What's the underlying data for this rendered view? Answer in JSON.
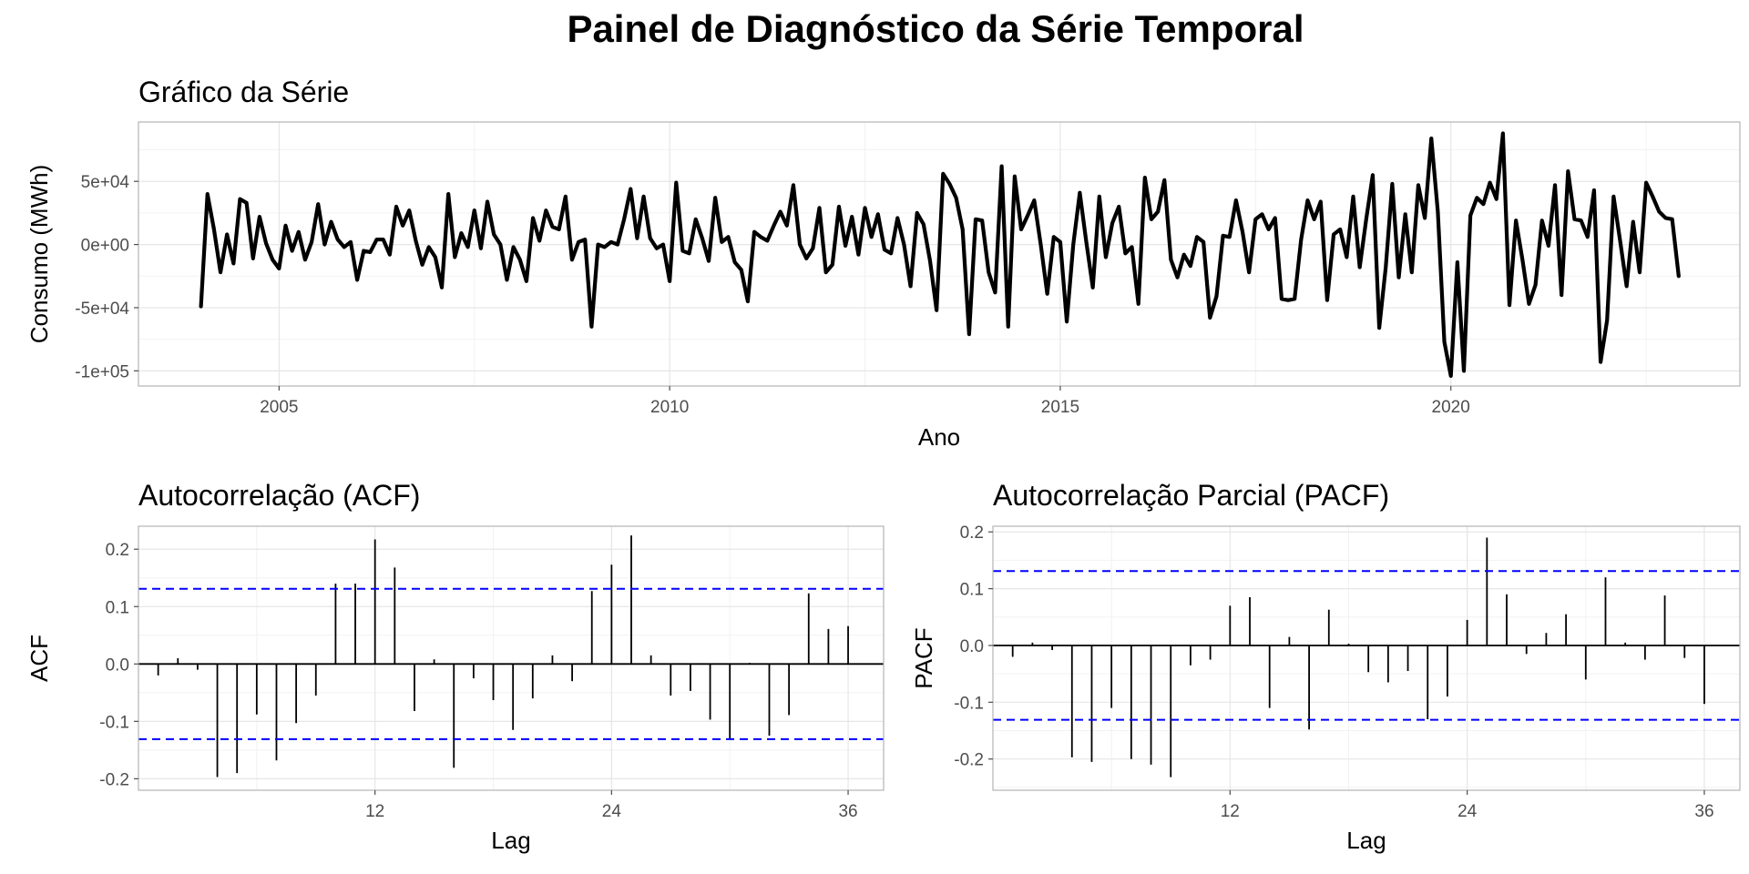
{
  "page_title": "Painel de Diagnóstico da Série Temporal",
  "colors": {
    "series": "#000000",
    "ci_line": "#0000ff",
    "grid": "#e6e6e6",
    "frame": "#b3b3b3"
  },
  "chart_data": [
    {
      "id": "series",
      "type": "line",
      "title": "Gráfico da Série",
      "xlabel": "Ano",
      "ylabel": "Consumo (MWh)",
      "xlim": [
        2003.2,
        2023.7
      ],
      "ylim": [
        -112000,
        97000
      ],
      "x_ticks": [
        2005,
        2010,
        2015,
        2020
      ],
      "x_tick_labels": [
        "2005",
        "2010",
        "2015",
        "2020"
      ],
      "y_ticks": [
        -100000,
        -50000,
        0,
        50000
      ],
      "y_tick_labels": [
        "-1e+05",
        "-5e+04",
        "0e+00",
        "5e+04"
      ],
      "x_start": 2004.0,
      "x_step": 0.0833333,
      "values": [
        -49000,
        40000,
        12000,
        -22000,
        8000,
        -15000,
        36000,
        33000,
        -11000,
        22000,
        1000,
        -12000,
        -19000,
        15000,
        -5000,
        10000,
        -12000,
        2000,
        32000,
        0,
        18000,
        4000,
        -2000,
        2000,
        -28000,
        -5000,
        -6000,
        4000,
        4000,
        -8000,
        30000,
        15000,
        27000,
        3000,
        -16000,
        -2000,
        -10000,
        -34000,
        40000,
        -10000,
        9000,
        -2000,
        27000,
        -3000,
        34000,
        8000,
        0,
        -28000,
        -2000,
        -12000,
        -29000,
        21000,
        3000,
        27000,
        14000,
        12000,
        38000,
        -12000,
        2000,
        4000,
        -65000,
        0,
        -2000,
        2000,
        0,
        20000,
        44000,
        5000,
        38000,
        5000,
        -3000,
        0,
        -29000,
        49000,
        -5000,
        -7000,
        20000,
        5000,
        -13000,
        37000,
        2000,
        6000,
        -14000,
        -20000,
        -45000,
        10000,
        6000,
        3000,
        15000,
        26000,
        15000,
        47000,
        0,
        -11000,
        -3000,
        29000,
        -22000,
        -16000,
        30000,
        -1000,
        22000,
        -8000,
        29000,
        6000,
        24000,
        -4000,
        -7000,
        21000,
        0,
        -33000,
        25000,
        16000,
        -13000,
        -52000,
        56000,
        48000,
        37000,
        12000,
        -71000,
        20000,
        19000,
        -22000,
        -38000,
        62000,
        -65000,
        54000,
        12000,
        23000,
        35000,
        0,
        -39000,
        6000,
        2000,
        -61000,
        0,
        41000,
        2000,
        -34000,
        38000,
        -10000,
        17000,
        30000,
        -7000,
        -2000,
        -47000,
        53000,
        20000,
        26000,
        51000,
        -12000,
        -26000,
        -8000,
        -17000,
        6000,
        2000,
        -58000,
        -41000,
        7000,
        6000,
        35000,
        10000,
        -22000,
        20000,
        24000,
        12000,
        21000,
        -43000,
        -44000,
        -43000,
        4000,
        35000,
        20000,
        34000,
        -44000,
        8000,
        12000,
        -10000,
        38000,
        -18000,
        20000,
        55000,
        -66000,
        -18000,
        48000,
        -26000,
        24000,
        -22000,
        47000,
        21000,
        84000,
        26000,
        -77000,
        -104000,
        -14000,
        -100000,
        23000,
        37000,
        32000,
        49000,
        36000,
        88000,
        -48000,
        19000,
        -12000,
        -47000,
        -32000,
        19000,
        -1000,
        47000,
        -40000,
        58000,
        20000,
        19000,
        6000,
        43000,
        -93000,
        -60000,
        38000,
        3000,
        -33000,
        18000,
        -22000,
        49000,
        38000,
        26000,
        21000,
        20000,
        -25000
      ]
    },
    {
      "id": "acf",
      "type": "bar",
      "title": "Autocorrelação (ACF)",
      "xlabel": "Lag",
      "ylabel": "ACF",
      "xlim": [
        0,
        37.8
      ],
      "ylim": [
        -0.22,
        0.24
      ],
      "x_ticks": [
        12,
        24,
        36
      ],
      "x_tick_labels": [
        "12",
        "24",
        "36"
      ],
      "y_ticks": [
        -0.2,
        -0.1,
        0.0,
        0.1,
        0.2
      ],
      "y_tick_labels": [
        "-0.2",
        "-0.1",
        "0.0",
        "0.1",
        "0.2"
      ],
      "ci": 0.131,
      "lags": [
        1,
        2,
        3,
        4,
        5,
        6,
        7,
        8,
        9,
        10,
        11,
        12,
        13,
        14,
        15,
        16,
        17,
        18,
        19,
        20,
        21,
        22,
        23,
        24,
        25,
        26,
        27,
        28,
        29,
        30,
        31,
        32,
        33,
        34,
        35,
        36
      ],
      "values": [
        -0.02,
        0.01,
        -0.01,
        -0.197,
        -0.19,
        -0.088,
        -0.168,
        -0.103,
        -0.055,
        0.14,
        0.14,
        0.217,
        0.168,
        -0.082,
        0.008,
        -0.181,
        -0.025,
        -0.063,
        -0.115,
        -0.06,
        0.015,
        -0.03,
        0.127,
        0.173,
        0.224,
        0.015,
        -0.055,
        -0.047,
        -0.097,
        -0.13,
        0.002,
        -0.125,
        -0.089,
        0.123,
        0.061,
        0.066
      ]
    },
    {
      "id": "pacf",
      "type": "bar",
      "title": "Autocorrelação Parcial (PACF)",
      "xlabel": "Lag",
      "ylabel": "PACF",
      "xlim": [
        0,
        37.8
      ],
      "ylim": [
        -0.255,
        0.21
      ],
      "x_ticks": [
        12,
        24,
        36
      ],
      "x_tick_labels": [
        "12",
        "24",
        "36"
      ],
      "y_ticks": [
        -0.2,
        -0.1,
        0.0,
        0.1,
        0.2
      ],
      "y_tick_labels": [
        "-0.2",
        "-0.1",
        "0.0",
        "0.1",
        "0.2"
      ],
      "ci": 0.131,
      "lags": [
        1,
        2,
        3,
        4,
        5,
        6,
        7,
        8,
        9,
        10,
        11,
        12,
        13,
        14,
        15,
        16,
        17,
        18,
        19,
        20,
        21,
        22,
        23,
        24,
        25,
        26,
        27,
        28,
        29,
        30,
        31,
        32,
        33,
        34,
        35,
        36
      ],
      "values": [
        -0.02,
        0.005,
        -0.008,
        -0.197,
        -0.205,
        -0.11,
        -0.2,
        -0.21,
        -0.232,
        -0.035,
        -0.025,
        0.07,
        0.085,
        -0.11,
        0.015,
        -0.148,
        0.063,
        0.003,
        -0.047,
        -0.065,
        -0.045,
        -0.13,
        -0.09,
        0.045,
        0.19,
        0.09,
        -0.015,
        0.022,
        0.055,
        -0.06,
        0.12,
        0.005,
        -0.025,
        0.088,
        -0.022,
        -0.103
      ]
    }
  ]
}
